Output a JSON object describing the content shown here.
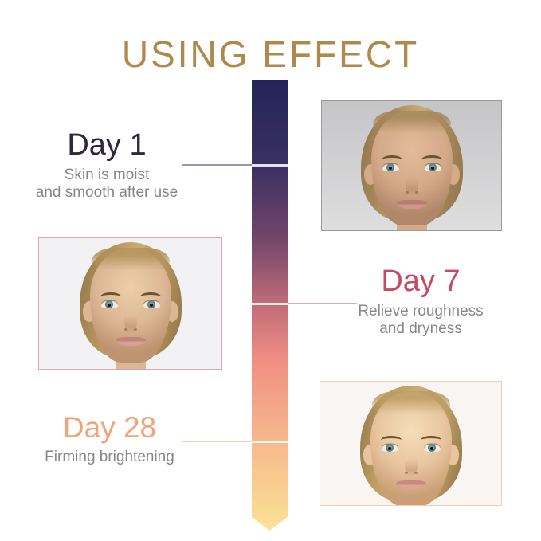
{
  "title": "USING EFFECT",
  "colors": {
    "title_gold": "#b1884b",
    "day1_heading": "#2f2645",
    "day7_heading": "#c54b61",
    "day28_heading": "#f0a478",
    "description_gray": "#878787",
    "arrow_gradient_top": "#232559",
    "arrow_gradient_middle": "#c16c78",
    "arrow_gradient_bottom": "#fbe39d",
    "photo1_border": "#9b9b9b",
    "photo2_border": "#e2a5af",
    "photo3_border": "#f3cdb4"
  },
  "timeline": {
    "stages": [
      {
        "label": "Day 1",
        "description_lines": [
          "Skin is moist",
          "and smooth after use"
        ],
        "photo": "woman-face-day-1"
      },
      {
        "label": "Day 7",
        "description_lines": [
          "Relieve roughness",
          "and dryness"
        ],
        "photo": "woman-face-day-7"
      },
      {
        "label": "Day 28",
        "description_lines": [
          "Firming brightening"
        ],
        "photo": "woman-face-day-28"
      }
    ]
  }
}
